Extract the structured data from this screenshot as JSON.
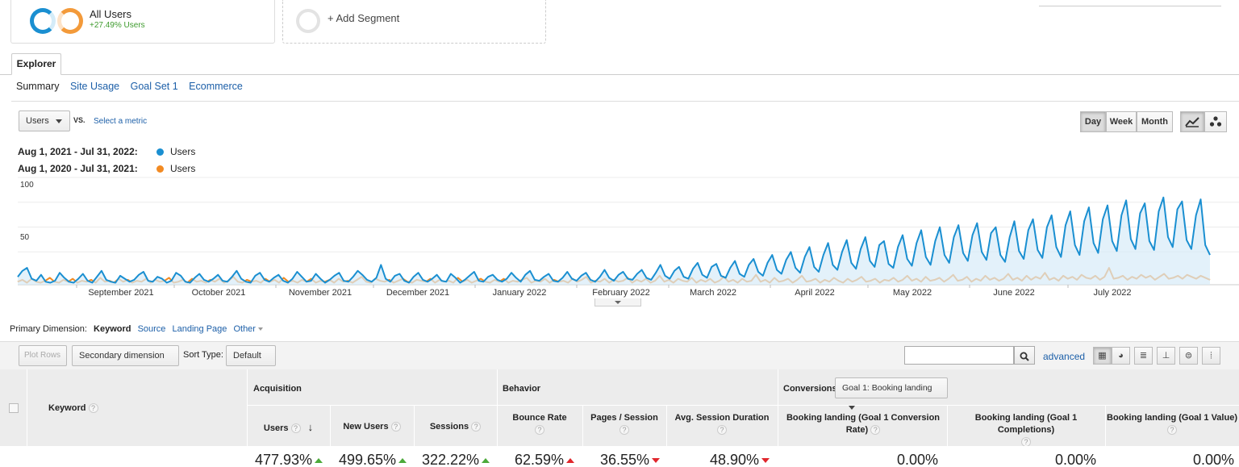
{
  "segments": {
    "all_users": {
      "label": "All Users",
      "change": "+27.49% Users"
    },
    "add_segment": "+ Add Segment"
  },
  "tabs": {
    "explorer": "Explorer"
  },
  "subtabs": [
    "Summary",
    "Site Usage",
    "Goal Set 1",
    "Ecommerce"
  ],
  "metric": {
    "selected": "Users",
    "vs": "VS.",
    "select_link": "Select a metric"
  },
  "granularity": [
    "Day",
    "Week",
    "Month"
  ],
  "legend": [
    {
      "range": "Aug 1, 2021 - Jul 31, 2022:",
      "metric": "Users",
      "color": "#1a8fd1"
    },
    {
      "range": "Aug 1, 2020 - Jul 31, 2021:",
      "metric": "Users",
      "color": "#f28a22"
    }
  ],
  "chart_data": {
    "type": "line",
    "ylim": [
      0,
      100
    ],
    "yticks": [
      "100",
      "50"
    ],
    "x_labels": [
      "September 2021",
      "October 2021",
      "November 2021",
      "December 2021",
      "January 2022",
      "February 2022",
      "March 2022",
      "April 2022",
      "May 2022",
      "June 2022",
      "July 2022"
    ],
    "series": [
      {
        "name": "Users (Aug 1, 2021 - Jul 31, 2022)",
        "color": "#1a8fd1",
        "filled": true,
        "values": [
          8,
          14,
          17,
          6,
          4,
          10,
          3,
          2,
          4,
          12,
          7,
          3,
          2,
          6,
          11,
          4,
          2,
          8,
          14,
          5,
          3,
          2,
          9,
          6,
          3,
          5,
          10,
          13,
          4,
          3,
          8,
          6,
          2,
          4,
          12,
          9,
          3,
          2,
          7,
          11,
          5,
          3,
          6,
          10,
          4,
          3,
          8,
          14,
          6,
          3,
          2,
          9,
          12,
          5,
          3,
          7,
          10,
          4,
          2,
          6,
          13,
          8,
          3,
          4,
          11,
          6,
          2,
          5,
          9,
          12,
          4,
          3,
          8,
          14,
          10,
          5,
          3,
          7,
          20,
          6,
          3,
          9,
          11,
          4,
          2,
          8,
          12,
          5,
          3,
          6,
          10,
          4,
          3,
          11,
          7,
          2,
          5,
          9,
          13,
          4,
          3,
          8,
          10,
          5,
          3,
          6,
          12,
          7,
          3,
          10,
          14,
          5,
          4,
          8,
          11,
          4,
          3,
          7,
          13,
          6,
          4,
          9,
          12,
          5,
          3,
          8,
          15,
          7,
          4,
          10,
          13,
          6,
          5,
          11,
          15,
          7,
          5,
          12,
          20,
          9,
          6,
          14,
          18,
          8,
          6,
          16,
          22,
          10,
          7,
          18,
          21,
          9,
          7,
          17,
          24,
          11,
          8,
          20,
          26,
          13,
          9,
          22,
          30,
          15,
          11,
          25,
          33,
          17,
          12,
          28,
          38,
          18,
          13,
          30,
          42,
          20,
          15,
          33,
          45,
          22,
          16,
          36,
          48,
          24,
          18,
          40,
          44,
          21,
          17,
          38,
          50,
          26,
          19,
          42,
          55,
          28,
          20,
          44,
          58,
          30,
          22,
          48,
          60,
          32,
          24,
          50,
          62,
          33,
          25,
          52,
          58,
          30,
          23,
          48,
          64,
          34,
          26,
          55,
          66,
          35,
          27,
          58,
          70,
          38,
          28,
          60,
          74,
          40,
          30,
          64,
          78,
          42,
          32,
          66,
          80,
          44,
          34,
          70,
          85,
          46,
          36,
          72,
          82,
          44,
          35,
          74,
          88,
          48,
          38,
          76,
          84,
          45,
          36,
          70,
          86,
          40,
          30
        ]
      },
      {
        "name": "Users (Aug 1, 2020 - Jul 31, 2021)",
        "color": "#f28a22",
        "filled": false,
        "values": [
          3,
          5,
          2,
          6,
          3,
          2,
          4,
          7,
          3,
          2,
          5,
          3,
          6,
          2,
          4,
          3,
          5,
          2,
          7,
          3,
          4,
          2,
          6,
          3,
          5,
          2,
          4,
          3,
          6,
          2,
          5,
          3,
          4,
          7,
          2,
          3,
          5,
          2,
          6,
          3,
          4,
          2,
          5,
          3,
          6,
          2,
          4,
          8,
          3,
          2,
          5,
          3,
          4,
          2,
          6,
          3,
          5,
          2,
          7,
          3,
          4,
          2,
          5,
          3,
          6,
          2,
          4,
          3,
          5,
          2,
          6,
          3,
          4,
          2,
          5,
          8,
          3,
          2,
          6,
          4,
          3,
          5,
          2,
          4,
          6,
          3,
          2,
          5,
          4,
          3,
          6,
          2,
          5,
          3,
          4,
          2,
          7,
          3,
          5,
          2,
          4,
          6,
          3,
          2,
          5,
          3,
          6,
          2,
          4,
          3,
          5,
          7,
          2,
          4,
          3,
          6,
          2,
          5,
          3,
          4,
          2,
          6,
          3,
          5,
          8,
          2,
          4,
          3,
          6,
          2,
          5,
          3,
          4,
          7,
          2,
          5,
          3,
          6,
          2,
          4,
          9,
          3,
          5,
          2,
          6,
          4,
          3,
          7,
          2,
          5,
          3,
          6,
          2,
          4,
          8,
          3,
          5,
          2,
          6,
          3,
          4,
          10,
          3,
          5,
          2,
          7,
          3,
          4,
          6,
          2,
          5,
          9,
          3,
          4,
          6,
          2,
          5,
          3,
          7,
          4,
          2,
          6,
          3,
          5,
          8,
          3,
          4,
          6,
          2,
          5,
          4,
          7,
          3,
          5,
          9,
          4,
          6,
          3,
          8,
          4,
          5,
          7,
          3,
          6,
          10,
          4,
          5,
          8,
          3,
          6,
          4,
          9,
          5,
          7,
          4,
          6,
          11,
          5,
          7,
          4,
          9,
          5,
          8,
          6,
          12,
          5,
          7,
          4,
          9,
          6,
          8,
          5,
          10,
          7,
          6,
          9,
          5,
          8,
          17,
          6,
          7,
          9,
          5,
          8,
          6,
          10,
          7,
          9,
          5,
          8,
          11,
          6,
          7,
          9,
          6,
          10,
          8,
          6,
          9,
          7,
          5
        ]
      }
    ]
  },
  "primary_dimension": {
    "label": "Primary Dimension:",
    "selected": "Keyword",
    "options": [
      "Source",
      "Landing Page",
      "Other"
    ]
  },
  "toolbar": {
    "plot_rows": "Plot Rows",
    "secondary": "Secondary dimension",
    "sort_label": "Sort Type:",
    "sort_value": "Default",
    "advanced": "advanced"
  },
  "table": {
    "keyword_header": "Keyword",
    "groups": {
      "acquisition": "Acquisition",
      "behavior": "Behavior",
      "conversions": "Conversions",
      "goal_select": "Goal 1: Booking landing"
    },
    "columns": [
      {
        "name": "Users",
        "value": "477.93%",
        "trend": "up-green"
      },
      {
        "name": "New Users",
        "value": "499.65%",
        "trend": "up-green"
      },
      {
        "name": "Sessions",
        "value": "322.22%",
        "trend": "up-green"
      },
      {
        "name": "Bounce Rate",
        "value": "62.59%",
        "trend": "up-red"
      },
      {
        "name": "Pages / Session",
        "value": "36.55%",
        "trend": "down-red"
      },
      {
        "name": "Avg. Session Duration",
        "value": "48.90%",
        "trend": "down-red"
      },
      {
        "name": "Booking landing (Goal 1 Conversion Rate)",
        "value": "0.00%",
        "trend": "none"
      },
      {
        "name": "Booking landing (Goal 1 Completions)",
        "value": "0.00%",
        "trend": "none"
      },
      {
        "name": "Booking landing (Goal 1 Value)",
        "value": "0.00%",
        "trend": "none"
      }
    ]
  }
}
